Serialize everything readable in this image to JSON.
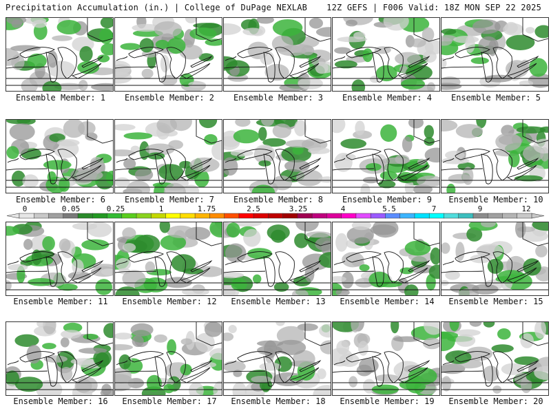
{
  "header": {
    "title_left": "Precipitation Accumulation (in.) | College of DuPage NEXLAB",
    "title_right": "12Z GEFS | F006 Valid: 18Z MON SEP 22 2025"
  },
  "colorbar": {
    "labels": [
      "0",
      "0.05",
      "0.25",
      "1",
      "1.75",
      "2.5",
      "3.25",
      "4",
      "5.5",
      "7",
      "9",
      "12"
    ],
    "colors": [
      "#e6e6e6",
      "#c8c8c8",
      "#a0a0a0",
      "#7a7a7a",
      "#2a8a2a",
      "#229922",
      "#33bb33",
      "#5acd1e",
      "#8ad21e",
      "#c3d800",
      "#ffff00",
      "#ffdd00",
      "#ffb400",
      "#ff8c00",
      "#ff5000",
      "#ff0000",
      "#dc0000",
      "#be0000",
      "#a00000",
      "#a00050",
      "#be007d",
      "#dc009b",
      "#ff00c8",
      "#e14bff",
      "#9b5aff",
      "#5a8cff",
      "#3cb4ff",
      "#00e1ff",
      "#00ffff",
      "#50dcdc",
      "#3cbebe",
      "#8c8c8c",
      "#a0a0a0",
      "#b4b4b4",
      "#c8c8c8"
    ]
  },
  "members": [
    {
      "label": "Ensemble Member: 1"
    },
    {
      "label": "Ensemble Member: 2"
    },
    {
      "label": "Ensemble Member: 3"
    },
    {
      "label": "Ensemble Member: 4"
    },
    {
      "label": "Ensemble Member: 5"
    },
    {
      "label": "Ensemble Member: 6"
    },
    {
      "label": "Ensemble Member: 7"
    },
    {
      "label": "Ensemble Member: 8"
    },
    {
      "label": "Ensemble Member: 9"
    },
    {
      "label": "Ensemble Member: 10"
    },
    {
      "label": "Ensemble Member: 11"
    },
    {
      "label": "Ensemble Member: 12"
    },
    {
      "label": "Ensemble Member: 13"
    },
    {
      "label": "Ensemble Member: 14"
    },
    {
      "label": "Ensemble Member: 15"
    },
    {
      "label": "Ensemble Member: 16"
    },
    {
      "label": "Ensemble Member: 17"
    },
    {
      "label": "Ensemble Member: 18"
    },
    {
      "label": "Ensemble Member: 19"
    },
    {
      "label": "Ensemble Member: 20"
    }
  ]
}
